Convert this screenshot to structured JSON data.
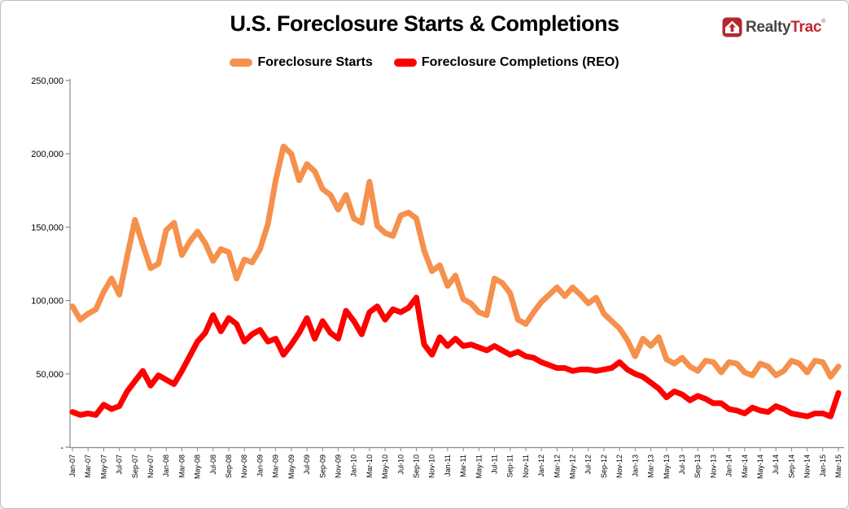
{
  "title": "U.S. Foreclosure Starts & Completions",
  "logo": {
    "realty": "Realty",
    "trac": "Trac",
    "mark": "®"
  },
  "legend": [
    {
      "label": "Foreclosure Starts",
      "color": "#F5914D"
    },
    {
      "label": "Foreclosure Completions (REO)",
      "color": "#FF0000"
    }
  ],
  "colors": {
    "axis": "#8C8C8C",
    "tick_text": "#000000",
    "logo_badge": "#B3282D"
  },
  "chart_data": {
    "type": "line",
    "title": "U.S. Foreclosure Starts & Completions",
    "xlabel": "",
    "ylabel": "",
    "x_start": "Jan-07",
    "x_end": "Mar-15",
    "x_interval": "monthly",
    "ylim": [
      0,
      250000
    ],
    "grid": false,
    "legend_position": "top-center",
    "y_tick_labels": [
      "-",
      "50,000",
      "100,000",
      "150,000",
      "200,000",
      "250,000"
    ],
    "x_tick_labels": [
      "Jan-07",
      "Mar-07",
      "May-07",
      "Jul-07",
      "Sep-07",
      "Nov-07",
      "Jan-08",
      "Mar-08",
      "May-08",
      "Jul-08",
      "Sep-08",
      "Nov-08",
      "Jan-09",
      "Mar-09",
      "May-09",
      "Jul-09",
      "Sep-09",
      "Nov-09",
      "Jan-10",
      "Mar-10",
      "May-10",
      "Jul-10",
      "Sep-10",
      "Nov-10",
      "Jan-11",
      "Mar-11",
      "May-11",
      "Jul-11",
      "Sep-11",
      "Nov-11",
      "Jan-12",
      "Mar-12",
      "May-12",
      "Jul-12",
      "Sep-12",
      "Nov-12",
      "Jan-13",
      "Mar-13",
      "May-13",
      "Jul-13",
      "Sep-13",
      "Nov-13",
      "Jan-14",
      "Mar-14",
      "May-14",
      "Jul-14",
      "Sep-14",
      "Nov-14",
      "Jan-15",
      "Mar-15"
    ],
    "series": [
      {
        "name": "Foreclosure Starts",
        "color": "#F5914D",
        "values": [
          96000,
          87000,
          91000,
          94000,
          106000,
          115000,
          104000,
          130000,
          155000,
          138000,
          122000,
          125000,
          148000,
          153000,
          131000,
          140000,
          147000,
          139000,
          127000,
          135000,
          133000,
          115000,
          128000,
          126000,
          135000,
          152000,
          182000,
          205000,
          200000,
          182000,
          193000,
          188000,
          176000,
          172000,
          162000,
          172000,
          156000,
          153000,
          181000,
          151000,
          146000,
          144000,
          158000,
          160000,
          156000,
          134000,
          120000,
          124000,
          110000,
          117000,
          101000,
          98000,
          92000,
          90000,
          115000,
          112000,
          105000,
          87000,
          84000,
          92000,
          99000,
          104000,
          109000,
          103000,
          109000,
          104000,
          98000,
          102000,
          91000,
          86000,
          81000,
          73000,
          62000,
          74000,
          69000,
          75000,
          60000,
          57000,
          61000,
          55000,
          52000,
          59000,
          58000,
          51000,
          58000,
          57000,
          51000,
          49000,
          57000,
          55000,
          49000,
          52000,
          59000,
          57000,
          51000,
          59000,
          58000,
          48000,
          55000
        ]
      },
      {
        "name": "Foreclosure Completions (REO)",
        "color": "#FF0000",
        "values": [
          24000,
          22000,
          23000,
          22000,
          29000,
          26000,
          28000,
          38000,
          45000,
          52000,
          42000,
          49000,
          46000,
          43000,
          52000,
          62000,
          72000,
          78000,
          90000,
          79000,
          88000,
          84000,
          72000,
          77000,
          80000,
          72000,
          74000,
          63000,
          70000,
          78000,
          88000,
          74000,
          86000,
          78000,
          74000,
          93000,
          86000,
          77000,
          92000,
          96000,
          87000,
          94000,
          92000,
          95000,
          102000,
          70000,
          63000,
          75000,
          69000,
          74000,
          69000,
          70000,
          68000,
          66000,
          69000,
          66000,
          63000,
          65000,
          62000,
          61000,
          58000,
          56000,
          54000,
          54000,
          52000,
          53000,
          53000,
          52000,
          53000,
          54000,
          58000,
          53000,
          50000,
          48000,
          44000,
          40000,
          34000,
          38000,
          36000,
          32000,
          35000,
          33000,
          30000,
          30000,
          26000,
          25000,
          23000,
          27000,
          25000,
          24000,
          28000,
          26000,
          23000,
          22000,
          21000,
          23000,
          23000,
          21000,
          37000
        ]
      }
    ]
  }
}
